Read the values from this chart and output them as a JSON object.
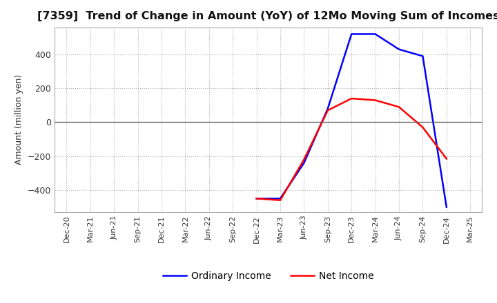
{
  "title": "[7359]  Trend of Change in Amount (YoY) of 12Mo Moving Sum of Incomes",
  "ylabel": "Amount (million yen)",
  "background_color": "#ffffff",
  "grid_color": "#b0b0b0",
  "x_labels": [
    "Dec-20",
    "Mar-21",
    "Jun-21",
    "Sep-21",
    "Dec-21",
    "Mar-22",
    "Jun-22",
    "Sep-22",
    "Dec-22",
    "Mar-23",
    "Jun-23",
    "Sep-23",
    "Dec-23",
    "Mar-24",
    "Jun-24",
    "Sep-24",
    "Dec-24",
    "Mar-25"
  ],
  "ordinary_income_x": [
    8,
    9,
    10,
    11,
    12,
    13,
    14,
    15,
    16
  ],
  "ordinary_income_y": [
    -450,
    -450,
    -240,
    80,
    520,
    520,
    430,
    390,
    -500
  ],
  "net_income_x": [
    8,
    9,
    10,
    11,
    12,
    13,
    14,
    15,
    16
  ],
  "net_income_y": [
    -450,
    -460,
    -220,
    70,
    140,
    130,
    90,
    -30,
    -215
  ],
  "ordinary_color": "#0000ff",
  "net_color": "#ff0000",
  "ylim": [
    -530,
    560
  ],
  "yticks": [
    -400,
    -200,
    0,
    200,
    400
  ],
  "legend_labels": [
    "Ordinary Income",
    "Net Income"
  ]
}
